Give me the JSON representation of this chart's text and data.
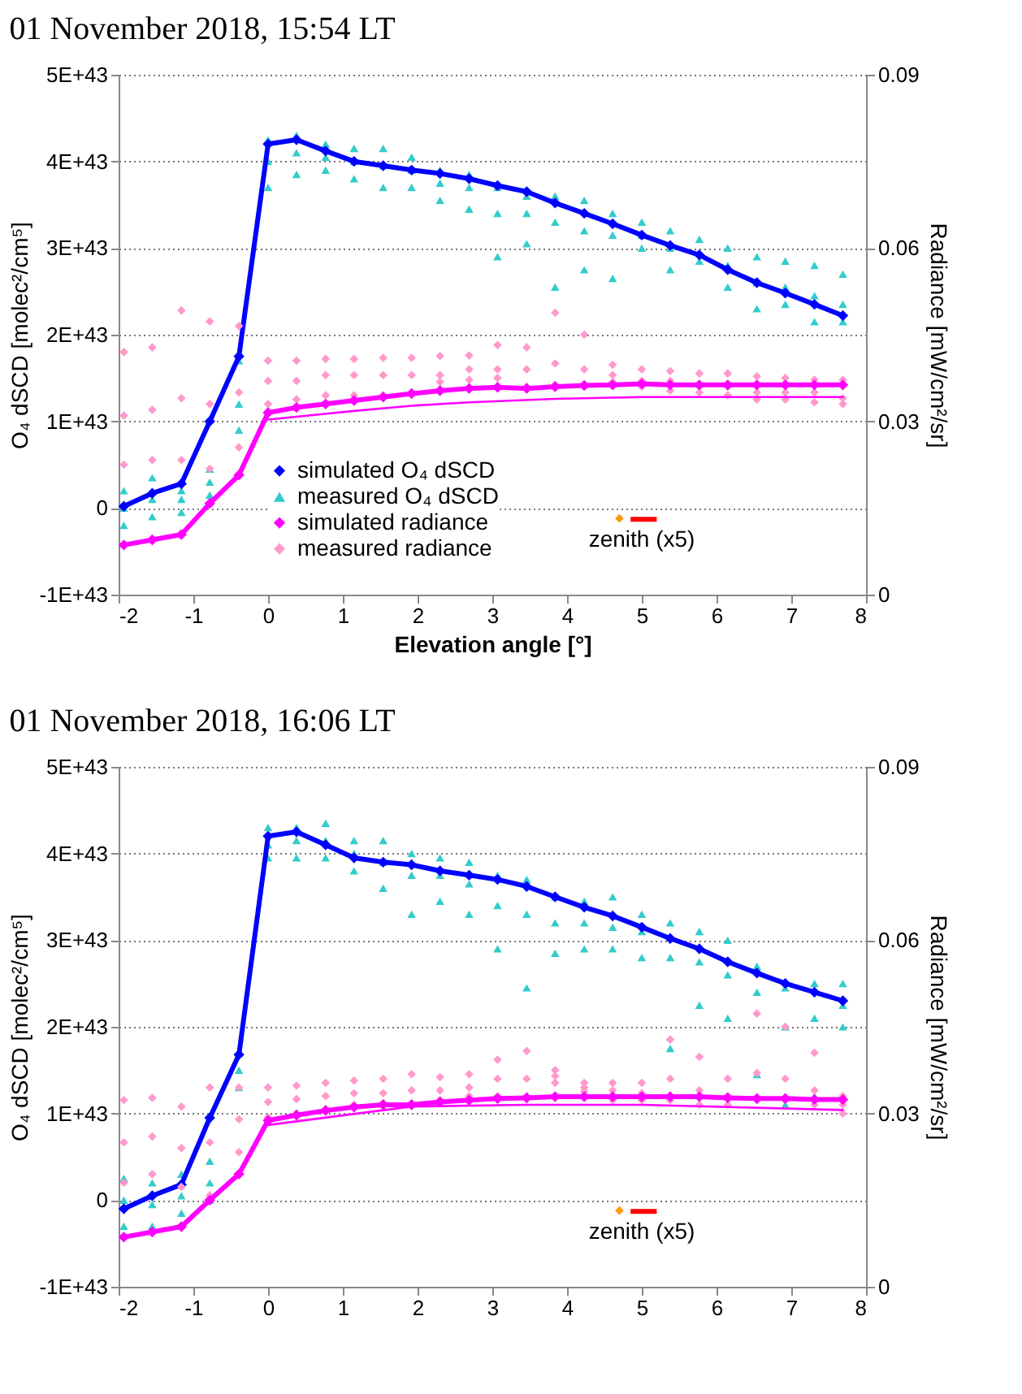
{
  "chart_data": [
    {
      "type": "line",
      "title": "01 November 2018, 15:54 LT",
      "xlabel": "Elevation angle [°]",
      "ylabel": "O₄ dSCD [molec²/cm⁵]",
      "y2label": "Radiance [mW/cm²/sr]",
      "xlim": [
        -2,
        8
      ],
      "xticks": [
        -2,
        -1,
        0,
        1,
        2,
        3,
        4,
        5,
        6,
        7,
        8
      ],
      "ylim": [
        -1e+43,
        5e+43
      ],
      "yticks": [
        {
          "value": -1e+43,
          "label": "-1E+43"
        },
        0,
        {
          "value": 1e+43,
          "label": "1E+43"
        },
        {
          "value": 2e+43,
          "label": "2E+43"
        },
        {
          "value": 3e+43,
          "label": "3E+43"
        },
        {
          "value": 4e+43,
          "label": "4E+43"
        },
        {
          "value": 5e+43,
          "label": "5E+43"
        }
      ],
      "y2lim": [
        0,
        0.09
      ],
      "y2ticks": [
        0,
        0.03,
        0.06,
        0.09
      ],
      "grid": "y",
      "legend": "bottom",
      "annotations": [
        "zenith (x5)"
      ],
      "series": [
        {
          "name": "simulated O₄ dSCD",
          "color": "#0000ff",
          "marker": "diamond",
          "x": [
            -1.93,
            -1.55,
            -1.16,
            -0.78,
            -0.39,
            0,
            0.38,
            0.77,
            1.15,
            1.54,
            1.92,
            2.3,
            2.69,
            3.07,
            3.46,
            3.84,
            4.23,
            4.61,
            5,
            5.38,
            5.77,
            6.15,
            6.54,
            6.92,
            7.31,
            7.69
          ],
          "values": [
            2e+41,
            1.7e+42,
            2.8e+42,
            1e+43,
            1.75e+43,
            4.2e+43,
            4.25e+43,
            4.12e+43,
            4e+43,
            3.95e+43,
            3.9e+43,
            3.86e+43,
            3.8e+43,
            3.72e+43,
            3.65e+43,
            3.52e+43,
            3.4e+43,
            3.28e+43,
            3.15e+43,
            3.03e+43,
            2.92e+43,
            2.75e+43,
            2.6e+43,
            2.48e+43,
            2.35e+43,
            2.22e+43
          ]
        },
        {
          "name": "measured O₄ dSCD",
          "type": "scatter",
          "color": "#33cccc",
          "marker": "triangle",
          "x": [
            -1.93,
            -1.93,
            -1.93,
            -1.55,
            -1.55,
            -1.55,
            -1.16,
            -1.16,
            -1.16,
            -0.78,
            -0.78,
            -0.78,
            -0.39,
            -0.39,
            -0.39,
            0,
            0,
            0,
            0.38,
            0.38,
            0.38,
            0.77,
            0.77,
            0.77,
            1.15,
            1.15,
            1.15,
            1.54,
            1.54,
            1.54,
            1.92,
            1.92,
            1.92,
            2.3,
            2.3,
            2.3,
            2.69,
            2.69,
            2.69,
            3.07,
            3.07,
            3.07,
            3.46,
            3.46,
            3.46,
            3.84,
            3.84,
            3.84,
            4.23,
            4.23,
            4.23,
            4.61,
            4.61,
            4.61,
            5,
            5,
            5,
            5.38,
            5.38,
            5.38,
            5.77,
            5.77,
            5.77,
            6.15,
            6.15,
            6.15,
            6.54,
            6.54,
            6.54,
            6.92,
            6.92,
            6.92,
            7.31,
            7.31,
            7.31,
            7.69,
            7.69,
            7.69
          ],
          "values": [
            -2e+42,
            0,
            2e+42,
            -1e+42,
            1e+42,
            3.5e+42,
            -5e+41,
            1e+42,
            2e+42,
            1.5e+42,
            3e+42,
            4.5e+42,
            9e+42,
            1.2e+43,
            1.7e+43,
            3.7e+43,
            4e+43,
            4.25e+43,
            3.85e+43,
            4.1e+43,
            4.3e+43,
            3.9e+43,
            4.05e+43,
            4.2e+43,
            3.8e+43,
            4e+43,
            4.15e+43,
            3.7e+43,
            3.95e+43,
            4.15e+43,
            3.7e+43,
            3.9e+43,
            4.05e+43,
            3.55e+43,
            3.75e+43,
            3.9e+43,
            3.45e+43,
            3.7e+43,
            3.85e+43,
            2.9e+43,
            3.4e+43,
            3.7e+43,
            3.05e+43,
            3.4e+43,
            3.6e+43,
            2.55e+43,
            3.3e+43,
            3.6e+43,
            2.75e+43,
            3.2e+43,
            3.55e+43,
            2.65e+43,
            3.15e+43,
            3.4e+43,
            3e+43,
            3.15e+43,
            3.3e+43,
            2.75e+43,
            3e+43,
            3.2e+43,
            2.85e+43,
            2.95e+43,
            3.1e+43,
            2.55e+43,
            2.8e+43,
            3e+43,
            2.3e+43,
            2.6e+43,
            2.9e+43,
            2.35e+43,
            2.55e+43,
            2.85e+43,
            2.15e+43,
            2.45e+43,
            2.8e+43,
            2.15e+43,
            2.35e+43,
            2.7e+43
          ]
        },
        {
          "name": "simulated radiance",
          "axis": "y2",
          "color": "#ff00ff",
          "marker": "diamond",
          "x": [
            -1.93,
            -1.55,
            -1.16,
            -0.78,
            -0.39,
            0,
            0.38,
            0.77,
            1.15,
            1.54,
            1.92,
            2.3,
            2.69,
            3.07,
            3.46,
            3.84,
            4.23,
            4.61,
            5,
            5.38,
            5.77,
            6.15,
            6.54,
            6.92,
            7.31,
            7.69
          ],
          "values": [
            0.0086,
            0.0095,
            0.0104,
            0.0158,
            0.0207,
            0.0315,
            0.0324,
            0.033,
            0.0336,
            0.0342,
            0.0348,
            0.0353,
            0.0357,
            0.0359,
            0.0357,
            0.036,
            0.0362,
            0.0363,
            0.0365,
            0.0363,
            0.0363,
            0.0363,
            0.0363,
            0.0363,
            0.0363,
            0.0363
          ]
        },
        {
          "name": "measured radiance",
          "type": "scatter",
          "axis": "y2",
          "color": "#ff99cc",
          "marker": "diamond",
          "x": [
            -1.93,
            -1.93,
            -1.93,
            -1.55,
            -1.55,
            -1.55,
            -1.16,
            -1.16,
            -1.16,
            -0.78,
            -0.78,
            -0.78,
            -0.39,
            -0.39,
            -0.39,
            0,
            0,
            0,
            0.38,
            0.38,
            0.38,
            0.77,
            0.77,
            0.77,
            1.15,
            1.15,
            1.15,
            1.54,
            1.54,
            1.54,
            1.92,
            1.92,
            1.92,
            2.3,
            2.3,
            2.3,
            2.69,
            2.69,
            2.69,
            3.07,
            3.07,
            3.07,
            3.46,
            3.46,
            3.46,
            3.84,
            3.84,
            3.84,
            4.23,
            4.23,
            4.23,
            4.61,
            4.61,
            4.61,
            5,
            5,
            5,
            5.38,
            5.38,
            5.38,
            5.77,
            5.77,
            5.77,
            6.15,
            6.15,
            6.15,
            6.54,
            6.54,
            6.54,
            6.92,
            6.92,
            6.92,
            7.31,
            7.31,
            7.31,
            7.69,
            7.69,
            7.69
          ],
          "values": [
            0.0225,
            0.031,
            0.042,
            0.0233,
            0.032,
            0.0428,
            0.0233,
            0.034,
            0.0492,
            0.0218,
            0.033,
            0.0473,
            0.0255,
            0.035,
            0.0465,
            0.033,
            0.037,
            0.0405,
            0.0338,
            0.037,
            0.0405,
            0.0345,
            0.038,
            0.0408,
            0.0345,
            0.038,
            0.0408,
            0.0345,
            0.038,
            0.041,
            0.035,
            0.038,
            0.041,
            0.0368,
            0.038,
            0.0413,
            0.0372,
            0.039,
            0.0414,
            0.0375,
            0.039,
            0.0432,
            0.036,
            0.039,
            0.0428,
            0.0363,
            0.04,
            0.0488,
            0.036,
            0.039,
            0.045,
            0.0368,
            0.038,
            0.0398,
            0.036,
            0.037,
            0.039,
            0.0353,
            0.037,
            0.0387,
            0.035,
            0.036,
            0.0383,
            0.0345,
            0.036,
            0.0383,
            0.0338,
            0.035,
            0.0378,
            0.0338,
            0.035,
            0.0375,
            0.0333,
            0.035,
            0.0372,
            0.033,
            0.034,
            0.0372
          ]
        },
        {
          "axis": "y2",
          "color": "#ff00ff",
          "x": [
            0,
            1.15,
            1.92,
            2.69,
            3.84,
            5,
            7.69
          ],
          "values": [
            0.0303,
            0.0318,
            0.0327,
            0.0333,
            0.0339,
            0.0342,
            0.0342
          ]
        },
        {
          "type": "scatter",
          "color": "#ff9900",
          "marker": "diamond",
          "x": [
            4.7
          ],
          "values": [
            -1.2e+42
          ]
        },
        {
          "color": "#ff0000",
          "x": [
            4.85,
            5.2
          ],
          "values": [
            -1.3e+42,
            -1.3e+42
          ]
        }
      ]
    },
    {
      "type": "line",
      "title": "01 November 2018, 16:06 LT",
      "ylabel": "O₄ dSCD [molec²/cm⁵]",
      "y2label": "Radiance [mW/cm²/sr]",
      "xlim": [
        -2,
        8
      ],
      "xticks": [
        -2,
        -1,
        0,
        1,
        2,
        3,
        4,
        5,
        6,
        7,
        8
      ],
      "ylim": [
        -1e+43,
        5e+43
      ],
      "yticks": [
        {
          "value": -1e+43,
          "label": "-1E+43"
        },
        0,
        {
          "value": 1e+43,
          "label": "1E+43"
        },
        {
          "value": 2e+43,
          "label": "2E+43"
        },
        {
          "value": 3e+43,
          "label": "3E+43"
        },
        {
          "value": 4e+43,
          "label": "4E+43"
        },
        {
          "value": 5e+43,
          "label": "5E+43"
        }
      ],
      "y2lim": [
        0,
        0.09
      ],
      "y2ticks": [
        0,
        0.03,
        0.06,
        0.09
      ],
      "grid": "y",
      "legend": "bottom",
      "annotations": [
        "zenith (x5)"
      ],
      "series": [
        {
          "name": "simulated O₄ dSCD",
          "color": "#0000ff",
          "marker": "diamond",
          "x": [
            -1.93,
            -1.55,
            -1.16,
            -0.78,
            -0.39,
            0,
            0.38,
            0.77,
            1.15,
            1.54,
            1.92,
            2.3,
            2.69,
            3.07,
            3.46,
            3.84,
            4.23,
            4.61,
            5,
            5.38,
            5.77,
            6.15,
            6.54,
            6.92,
            7.31,
            7.69
          ],
          "values": [
            -1e+42,
            5e+41,
            1.8e+42,
            9.5e+42,
            1.68e+43,
            4.2e+43,
            4.25e+43,
            4.1e+43,
            3.95e+43,
            3.9e+43,
            3.87e+43,
            3.8e+43,
            3.75e+43,
            3.7e+43,
            3.62e+43,
            3.5e+43,
            3.38e+43,
            3.28e+43,
            3.15e+43,
            3.02e+43,
            2.9e+43,
            2.75e+43,
            2.62e+43,
            2.5e+43,
            2.4e+43,
            2.3e+43
          ]
        },
        {
          "name": "measured O₄ dSCD",
          "type": "scatter",
          "color": "#33cccc",
          "marker": "triangle",
          "x": [
            -1.93,
            -1.93,
            -1.93,
            -1.55,
            -1.55,
            -1.55,
            -1.16,
            -1.16,
            -1.16,
            -0.78,
            -0.78,
            -0.78,
            -0.39,
            -0.39,
            -0.39,
            0,
            0,
            0,
            0.38,
            0.38,
            0.38,
            0.77,
            0.77,
            0.77,
            1.15,
            1.15,
            1.15,
            1.54,
            1.54,
            1.54,
            1.92,
            1.92,
            1.92,
            2.3,
            2.3,
            2.3,
            2.69,
            2.69,
            2.69,
            3.07,
            3.07,
            3.07,
            3.46,
            3.46,
            3.46,
            3.84,
            3.84,
            3.84,
            4.23,
            4.23,
            4.23,
            4.61,
            4.61,
            4.61,
            5,
            5,
            5,
            5.38,
            5.38,
            5.38,
            5.77,
            5.77,
            5.77,
            6.15,
            6.15,
            6.15,
            6.54,
            6.54,
            6.54,
            6.92,
            6.92,
            6.92,
            7.31,
            7.31,
            7.31,
            7.69,
            7.69,
            7.69
          ],
          "values": [
            -3e+42,
            0,
            2.5e+42,
            -3e+42,
            -5e+41,
            2e+42,
            -1.5e+42,
            5e+41,
            3e+42,
            0,
            2e+42,
            4.5e+42,
            1.3e+43,
            1.5e+43,
            1.7e+43,
            3.95e+43,
            4.1e+43,
            4.3e+43,
            3.95e+43,
            4.15e+43,
            4.3e+43,
            3.95e+43,
            4.15e+43,
            4.35e+43,
            3.8e+43,
            4e+43,
            4.15e+43,
            3.6e+43,
            3.9e+43,
            4.15e+43,
            3.3e+43,
            3.75e+43,
            4e+43,
            3.45e+43,
            3.75e+43,
            3.95e+43,
            3.3e+43,
            3.65e+43,
            3.9e+43,
            2.9e+43,
            3.4e+43,
            3.75e+43,
            2.45e+43,
            3.3e+43,
            3.7e+43,
            2.85e+43,
            3.2e+43,
            3.5e+43,
            2.9e+43,
            3.2e+43,
            3.45e+43,
            2.9e+43,
            3.15e+43,
            3.5e+43,
            2.8e+43,
            3.1e+43,
            3.3e+43,
            1.75e+43,
            2.8e+43,
            3.2e+43,
            2.25e+43,
            2.75e+43,
            3.1e+43,
            2.1e+43,
            2.6e+43,
            3e+43,
            1.45e+43,
            2.4e+43,
            2.7e+43,
            1.1e+43,
            2e+43,
            2.45e+43,
            1.2e+43,
            2.1e+43,
            2.5e+43,
            2e+43,
            2.25e+43,
            2.5e+43
          ]
        },
        {
          "name": "simulated radiance",
          "axis": "y2",
          "color": "#ff00ff",
          "marker": "diamond",
          "x": [
            -1.93,
            -1.55,
            -1.16,
            -0.78,
            -0.39,
            0,
            0.38,
            0.77,
            1.15,
            1.54,
            1.92,
            2.3,
            2.69,
            3.07,
            3.46,
            3.84,
            4.23,
            4.61,
            5,
            5.38,
            5.77,
            6.15,
            6.54,
            6.92,
            7.31,
            7.69
          ],
          "values": [
            0.0086,
            0.0095,
            0.0104,
            0.015,
            0.0195,
            0.0288,
            0.0297,
            0.0305,
            0.0311,
            0.0315,
            0.0315,
            0.032,
            0.0323,
            0.0326,
            0.0327,
            0.0329,
            0.0329,
            0.0329,
            0.0329,
            0.0329,
            0.0329,
            0.0327,
            0.0326,
            0.0326,
            0.0324,
            0.0324
          ]
        },
        {
          "name": "measured radiance",
          "type": "scatter",
          "axis": "y2",
          "color": "#ff99cc",
          "marker": "diamond",
          "x": [
            -1.93,
            -1.93,
            -1.93,
            -1.55,
            -1.55,
            -1.55,
            -1.16,
            -1.16,
            -1.16,
            -0.78,
            -0.78,
            -0.78,
            -0.39,
            -0.39,
            -0.39,
            0,
            0,
            0,
            0.38,
            0.38,
            0.38,
            0.77,
            0.77,
            0.77,
            1.15,
            1.15,
            1.15,
            1.54,
            1.54,
            1.54,
            1.92,
            1.92,
            1.92,
            2.3,
            2.3,
            2.3,
            2.69,
            2.69,
            2.69,
            3.07,
            3.07,
            3.07,
            3.46,
            3.46,
            3.46,
            3.84,
            3.84,
            3.84,
            4.23,
            4.23,
            4.23,
            4.61,
            4.61,
            4.61,
            5,
            5,
            5,
            5.38,
            5.38,
            5.38,
            5.77,
            5.77,
            5.77,
            6.15,
            6.15,
            6.15,
            6.54,
            6.54,
            6.54,
            6.92,
            6.92,
            6.92,
            7.31,
            7.31,
            7.31,
            7.69,
            7.69,
            7.69
          ],
          "values": [
            0.018,
            0.025,
            0.0323,
            0.0195,
            0.026,
            0.0327,
            0.0173,
            0.024,
            0.0312,
            0.0158,
            0.025,
            0.0345,
            0.0233,
            0.029,
            0.0345,
            0.0293,
            0.032,
            0.0345,
            0.03,
            0.0325,
            0.0348,
            0.0308,
            0.033,
            0.0353,
            0.0315,
            0.0335,
            0.0357,
            0.0318,
            0.0335,
            0.036,
            0.0318,
            0.034,
            0.0368,
            0.0323,
            0.034,
            0.0363,
            0.033,
            0.0345,
            0.0368,
            0.033,
            0.036,
            0.0393,
            0.033,
            0.036,
            0.0408,
            0.0353,
            0.0365,
            0.0375,
            0.0338,
            0.0345,
            0.0353,
            0.0323,
            0.034,
            0.0353,
            0.0323,
            0.0335,
            0.0353,
            0.0323,
            0.036,
            0.0428,
            0.0315,
            0.034,
            0.0398,
            0.0315,
            0.033,
            0.036,
            0.0323,
            0.037,
            0.0473,
            0.0323,
            0.036,
            0.045,
            0.0315,
            0.034,
            0.0405,
            0.03,
            0.0315,
            0.033
          ]
        },
        {
          "axis": "y2",
          "color": "#ff00ff",
          "x": [
            0,
            1.92,
            3.46,
            5,
            7.69
          ],
          "values": [
            0.028,
            0.0312,
            0.0315,
            0.0315,
            0.0306
          ]
        },
        {
          "type": "scatter",
          "color": "#ff9900",
          "marker": "diamond",
          "x": [
            4.7
          ],
          "values": [
            -1.2e+42
          ]
        },
        {
          "color": "#ff0000",
          "x": [
            4.85,
            5.2
          ],
          "values": [
            -1.3e+42,
            -1.3e+42
          ]
        }
      ]
    }
  ]
}
